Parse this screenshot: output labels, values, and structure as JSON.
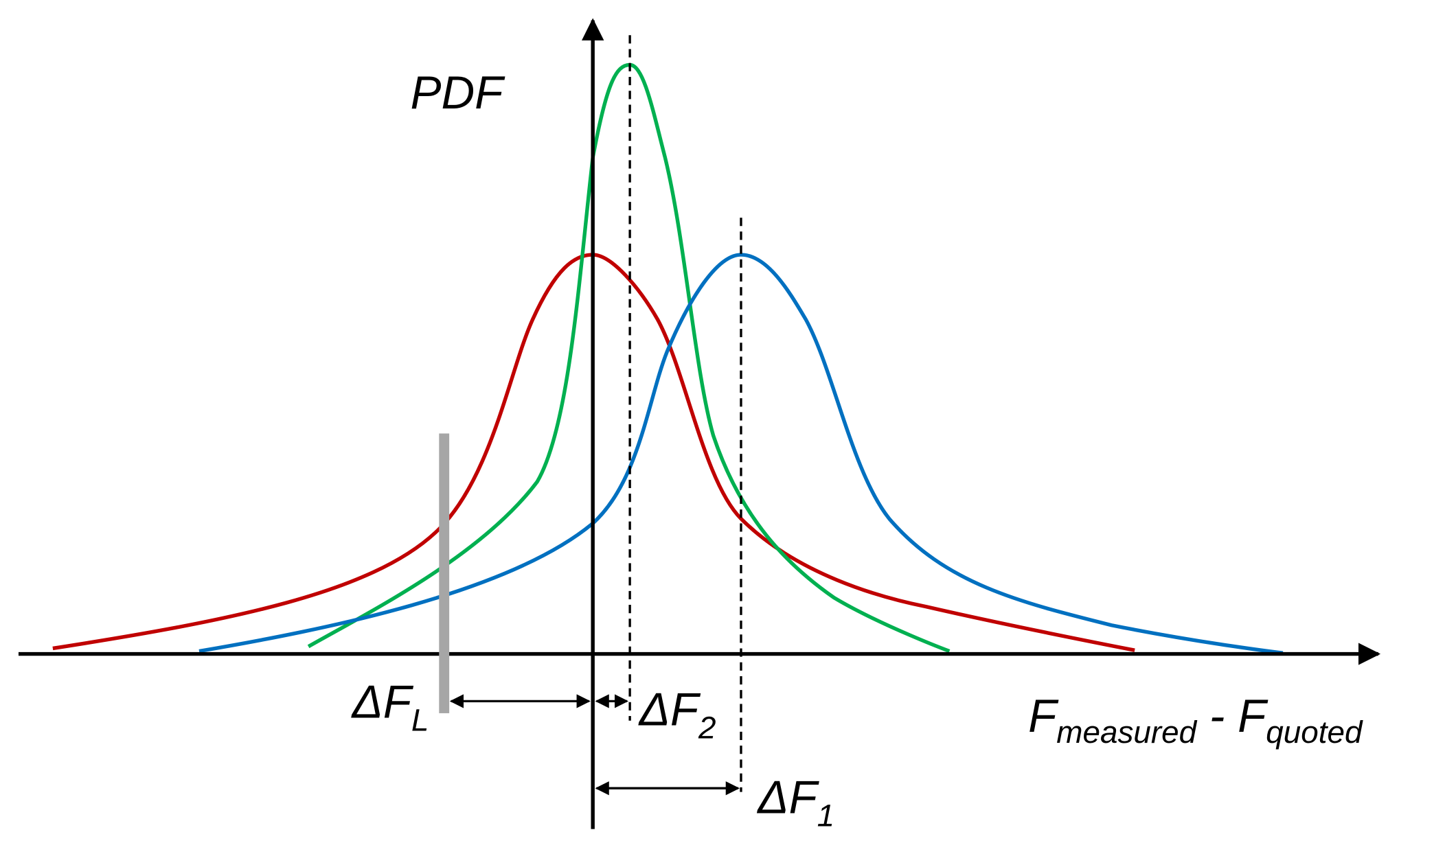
{
  "labels": {
    "pdf": "PDF",
    "delta_fl": {
      "main": "ΔF",
      "sub": "L"
    },
    "delta_f2": {
      "main": "ΔF",
      "sub": "2"
    },
    "delta_f1": {
      "main": "ΔF",
      "sub": "1"
    },
    "x_axis": {
      "f1": "F",
      "sub1": "measured",
      "minus": " - F",
      "sub2": "quoted"
    }
  }
}
